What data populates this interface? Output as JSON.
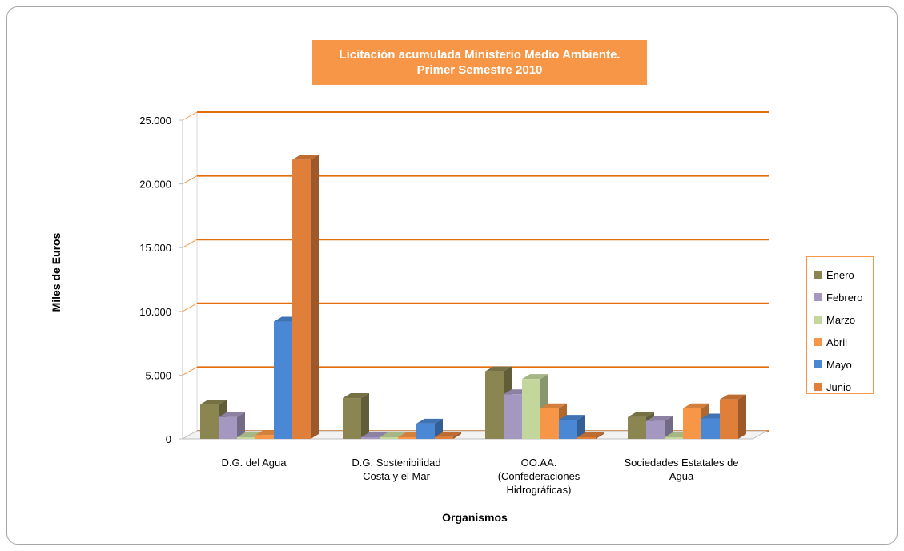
{
  "chart_data": {
    "type": "bar",
    "title": "Licitación acumulada Ministerio Medio Ambiente.",
    "subtitle": "Primer Semestre 2010",
    "xlabel": "Organismos",
    "ylabel": "Miles de Euros",
    "ylim": [
      0,
      25000
    ],
    "yticks": [
      "0",
      "5.000",
      "10.000",
      "15.000",
      "20.000",
      "25.000"
    ],
    "categories": [
      [
        "D.G. del Agua"
      ],
      [
        "D.G. Sostenibilidad",
        "Costa y el Mar"
      ],
      [
        "OO.AA.",
        "(Confederaciones",
        "Hidrográficas)"
      ],
      [
        "Sociedades Estatales  de",
        "Agua"
      ]
    ],
    "series": [
      {
        "name": "Enero",
        "color": "#8b8551",
        "values": [
          2700,
          3200,
          5300,
          1700
        ]
      },
      {
        "name": "Febrero",
        "color": "#a598c0",
        "values": [
          1700,
          0,
          3500,
          1400
        ]
      },
      {
        "name": "Marzo",
        "color": "#c3d69b",
        "values": [
          0,
          0,
          4700,
          0
        ]
      },
      {
        "name": "Abril",
        "color": "#f79646",
        "values": [
          300,
          0,
          2400,
          2400
        ]
      },
      {
        "name": "Mayo",
        "color": "#4a87d4",
        "values": [
          9200,
          1200,
          1500,
          1600
        ]
      },
      {
        "name": "Junio",
        "color": "#e07f3a",
        "values": [
          21900,
          150,
          0,
          3100
        ]
      }
    ],
    "grid": true,
    "legend_position": "right"
  }
}
